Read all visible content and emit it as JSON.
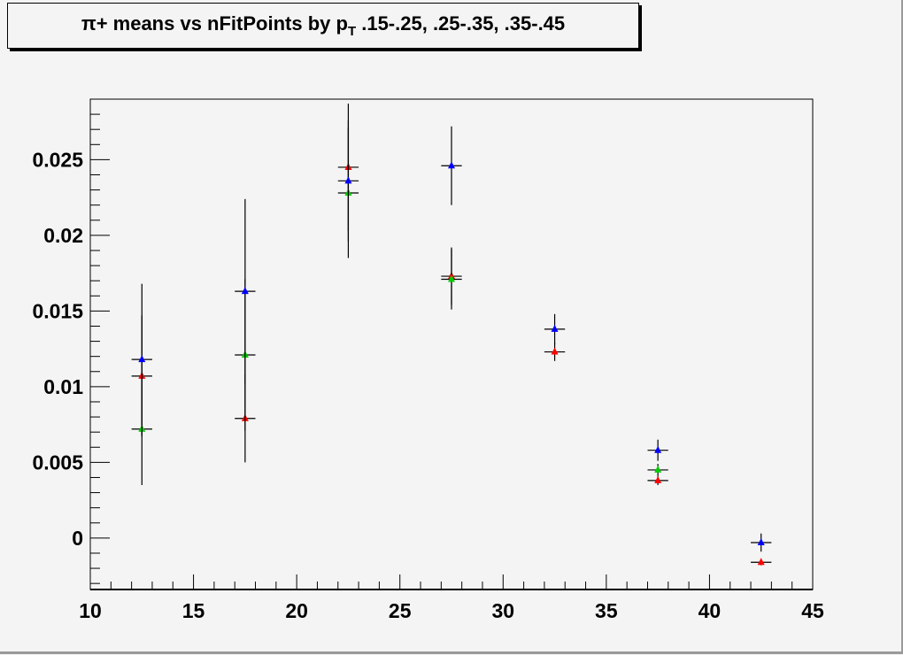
{
  "chart_data": {
    "type": "scatter",
    "title": {
      "prefix": "π+ means vs nFitPoints by p",
      "sub": "T",
      "suffix": " .15-.25, .25-.35, .35-.45"
    },
    "xlabel": "",
    "ylabel": "",
    "xlim": [
      10,
      45
    ],
    "ylim": [
      -0.0034,
      0.029
    ],
    "x_ticks": [
      "10",
      "15",
      "20",
      "25",
      "30",
      "35",
      "40",
      "45"
    ],
    "x_tick_values": [
      10,
      15,
      20,
      25,
      30,
      35,
      40,
      45
    ],
    "y_ticks": [
      "0",
      "0.005",
      "0.01",
      "0.015",
      "0.02",
      "0.025"
    ],
    "y_tick_values": [
      0,
      0.005,
      0.01,
      0.015,
      0.02,
      0.025
    ],
    "grid": false,
    "marker": "triangle-up",
    "x_error": 0.5,
    "series": [
      {
        "color": "#ff0000",
        "x": [
          12.5,
          17.5,
          22.5,
          27.5,
          32.5,
          37.5,
          42.5
        ],
        "y": [
          0.0107,
          0.0079,
          0.0245,
          0.0173,
          0.0123,
          0.0038,
          -0.0016
        ],
        "yerr": [
          0.004,
          0.0029,
          0.0042,
          0.0019,
          0.0006,
          0.0003,
          0.0002
        ]
      },
      {
        "color": "#00cc00",
        "x": [
          12.5,
          17.5,
          22.5,
          27.5,
          37.5
        ],
        "y": [
          0.0072,
          0.0121,
          0.0228,
          0.0171,
          0.0045
        ],
        "yerr": [
          0.0037,
          0.005,
          0.0043,
          0.002,
          0.0004
        ]
      },
      {
        "color": "#0000ff",
        "x": [
          12.5,
          17.5,
          22.5,
          27.5,
          32.5,
          37.5,
          42.5
        ],
        "y": [
          0.0118,
          0.0163,
          0.0236,
          0.0246,
          0.0138,
          0.0058,
          -0.0003
        ],
        "yerr": [
          0.005,
          0.0061,
          0.004,
          0.0026,
          0.001,
          0.0007,
          0.0006
        ]
      }
    ]
  }
}
